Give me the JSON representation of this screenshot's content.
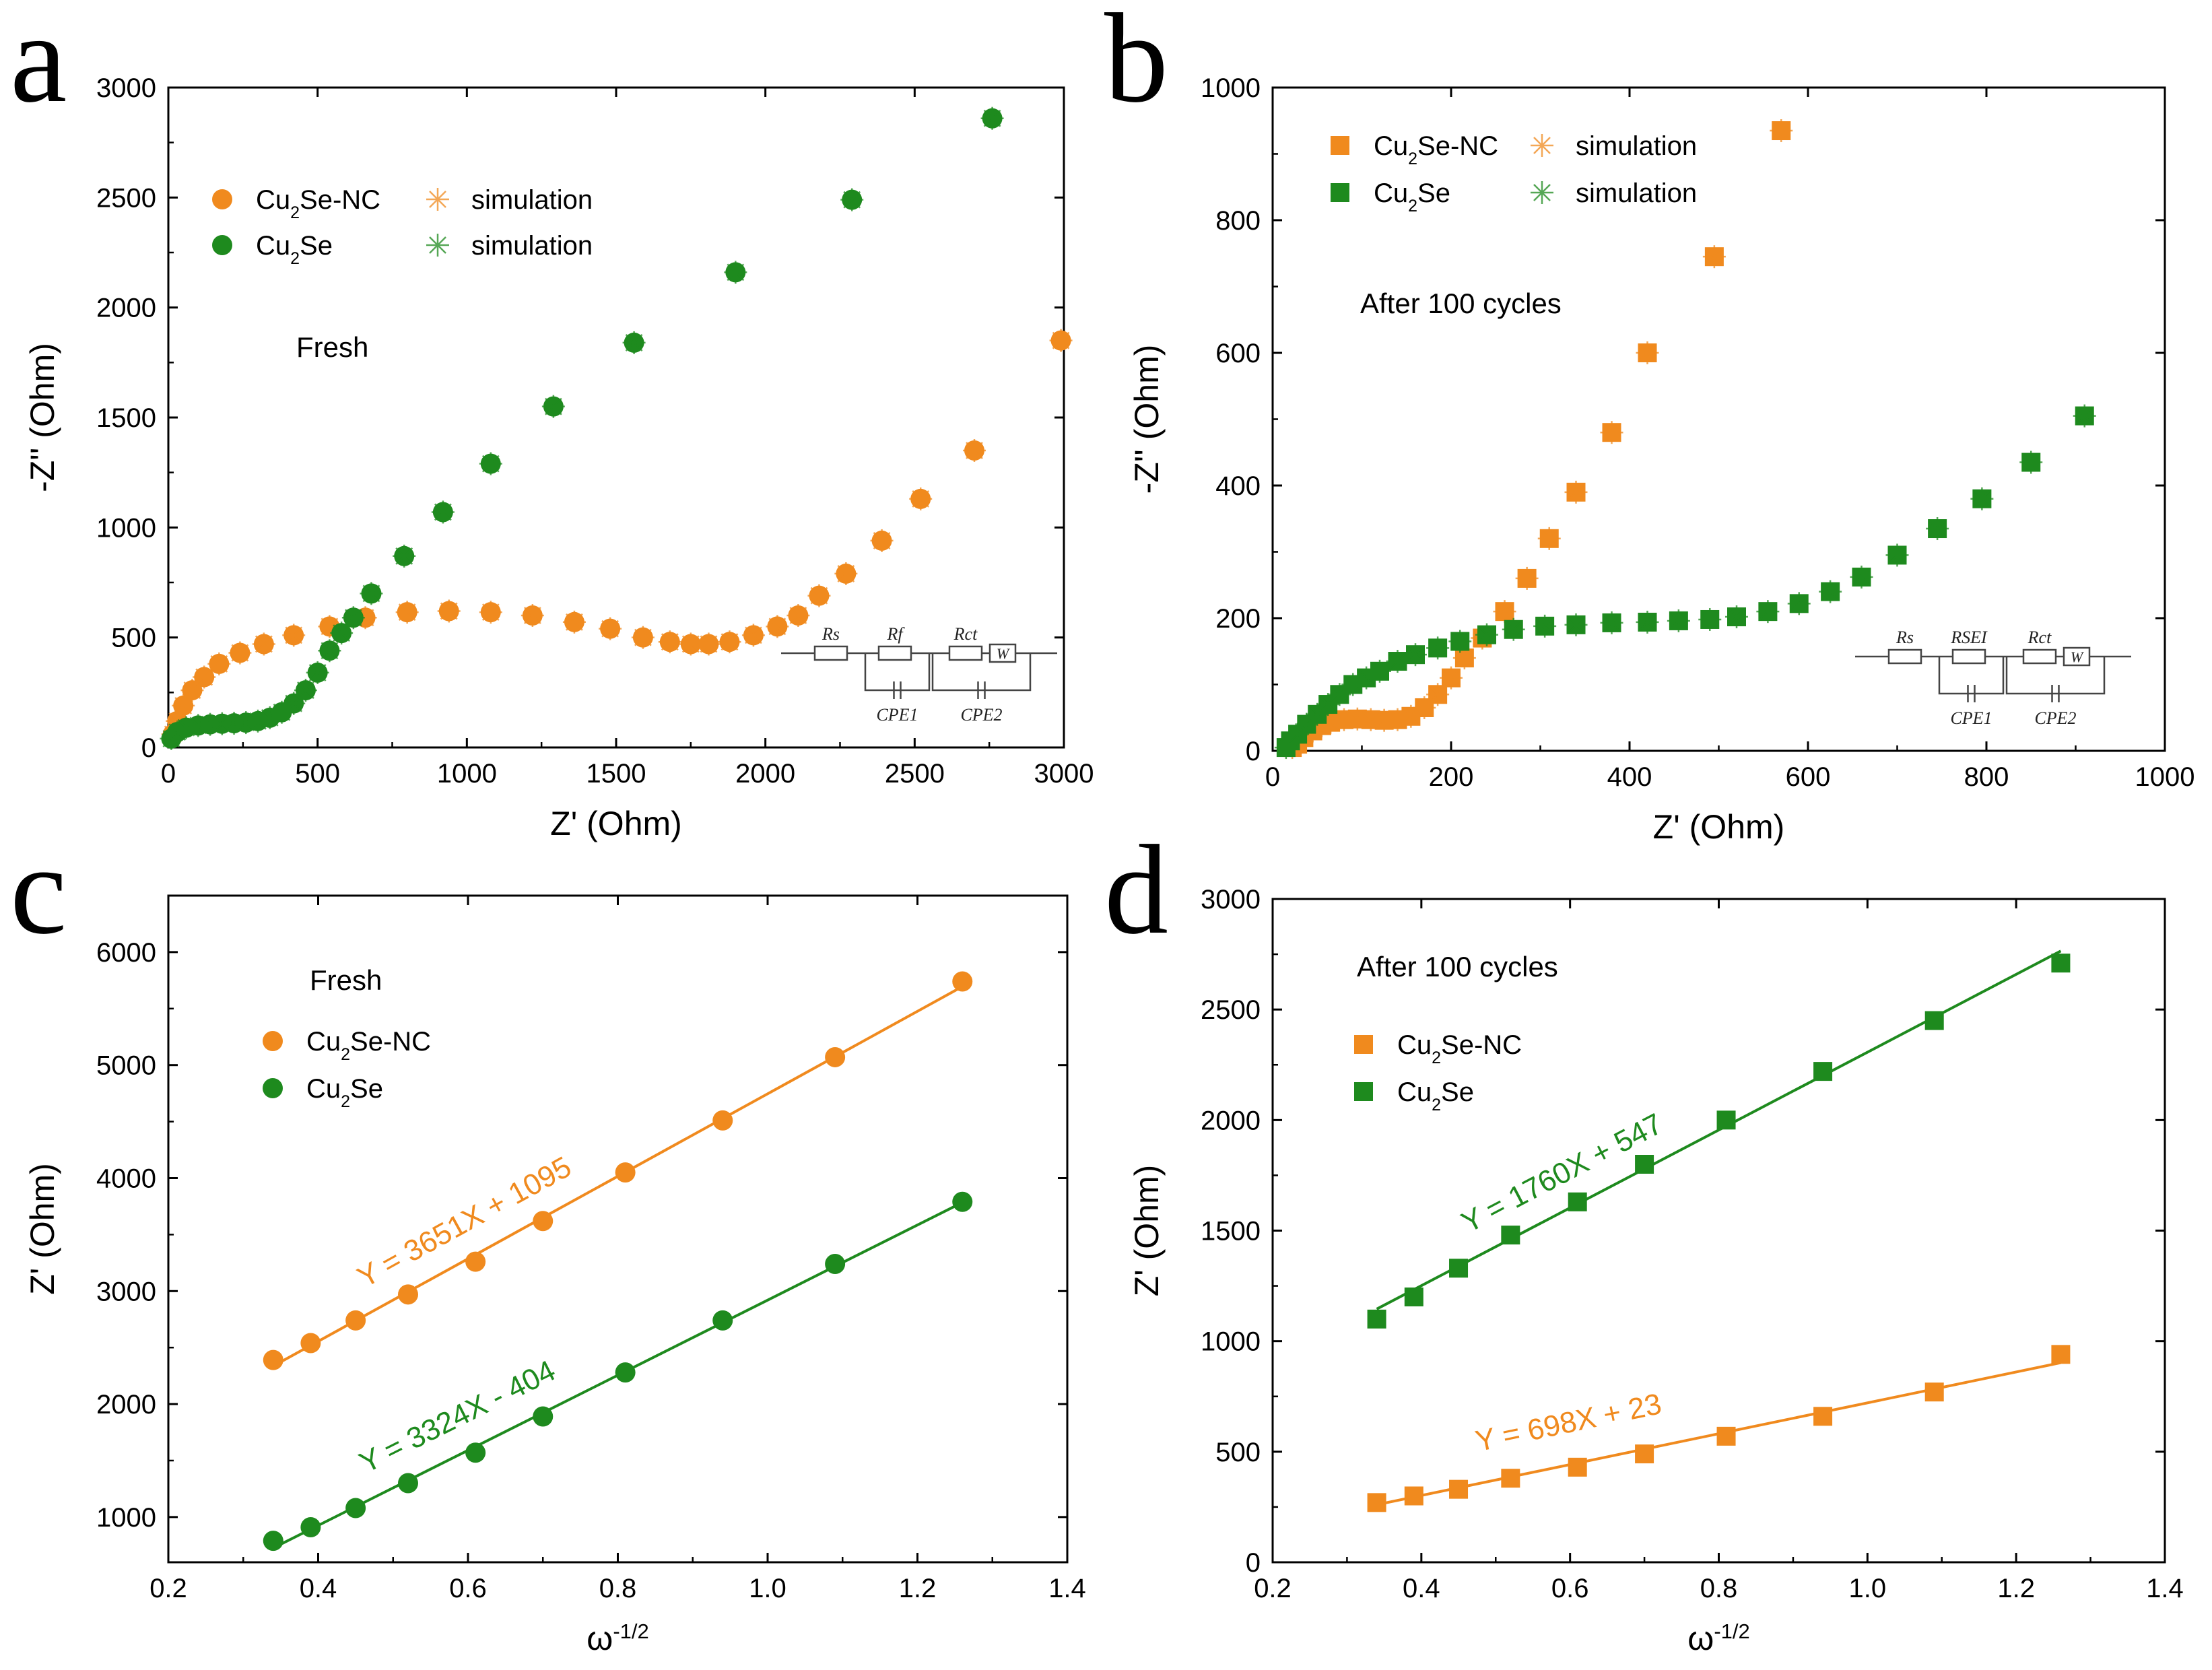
{
  "colors": {
    "orange": "#f08a1e",
    "green": "#1e8a1e",
    "axis": "#000000"
  },
  "chart_data": [
    {
      "panel": "a",
      "type": "scatter",
      "title": "",
      "annotation": "Fresh",
      "xlabel": "Z' (Ohm)",
      "ylabel": "-Z'' (Ohm)",
      "xlim": [
        0,
        3000
      ],
      "ylim": [
        0,
        3000
      ],
      "xticks": [
        0,
        500,
        1000,
        1500,
        2000,
        2500,
        3000
      ],
      "yticks": [
        0,
        500,
        1000,
        1500,
        2000,
        2500,
        3000
      ],
      "marker": "circle",
      "legend": {
        "position": "top-left",
        "series": [
          "Cu2Se-NC",
          "Cu2Se"
        ],
        "sim_label": "simulation"
      },
      "circuit": {
        "elements": [
          "Rs",
          "Rf",
          "Rct",
          "W"
        ],
        "cpes": [
          "CPE1",
          "CPE2"
        ]
      },
      "series": [
        {
          "name": "Cu2Se-NC",
          "color": "orange",
          "x": [
            15,
            30,
            50,
            80,
            120,
            170,
            240,
            320,
            420,
            540,
            660,
            800,
            940,
            1080,
            1220,
            1360,
            1480,
            1590,
            1680,
            1750,
            1810,
            1880,
            1960,
            2040,
            2110,
            2180,
            2270,
            2390,
            2520,
            2700,
            2990
          ],
          "y": [
            60,
            120,
            190,
            260,
            320,
            380,
            430,
            470,
            510,
            550,
            590,
            615,
            620,
            615,
            600,
            570,
            540,
            500,
            480,
            470,
            470,
            480,
            510,
            550,
            600,
            690,
            790,
            940,
            1130,
            1350,
            1850
          ]
        },
        {
          "name": "Cu2Se",
          "color": "green",
          "x": [
            10,
            30,
            60,
            100,
            140,
            180,
            220,
            260,
            300,
            340,
            380,
            420,
            460,
            500,
            540,
            580,
            620,
            680,
            790,
            920,
            1080,
            1290,
            1560,
            1900,
            2290,
            2760
          ],
          "y": [
            40,
            70,
            90,
            100,
            105,
            108,
            110,
            113,
            120,
            135,
            160,
            200,
            260,
            340,
            440,
            520,
            590,
            700,
            870,
            1070,
            1290,
            1550,
            1840,
            2160,
            2490,
            2860
          ]
        }
      ]
    },
    {
      "panel": "b",
      "type": "scatter",
      "title": "",
      "annotation": "After 100 cycles",
      "xlabel": "Z' (Ohm)",
      "ylabel": "-Z'' (Ohm)",
      "xlim": [
        0,
        1000
      ],
      "ylim": [
        0,
        1000
      ],
      "xticks": [
        0,
        200,
        400,
        600,
        800,
        1000
      ],
      "yticks": [
        0,
        200,
        400,
        600,
        800,
        1000
      ],
      "marker": "square",
      "legend": {
        "position": "top-left",
        "series": [
          "Cu2Se-NC",
          "Cu2Se"
        ],
        "sim_label": "simulation"
      },
      "circuit": {
        "elements": [
          "Rs",
          "RSEI",
          "Rct",
          "W"
        ],
        "cpes": [
          "CPE1",
          "CPE2"
        ]
      },
      "series": [
        {
          "name": "Cu2Se-NC",
          "color": "orange",
          "x": [
            22,
            28,
            35,
            45,
            55,
            65,
            80,
            95,
            110,
            125,
            140,
            155,
            170,
            185,
            200,
            215,
            235,
            260,
            285,
            310,
            340,
            380,
            420,
            495,
            570
          ],
          "y": [
            5,
            10,
            20,
            30,
            38,
            43,
            47,
            48,
            47,
            46,
            47,
            52,
            65,
            85,
            110,
            140,
            170,
            210,
            260,
            320,
            390,
            480,
            600,
            745,
            935
          ]
        },
        {
          "name": "Cu2Se",
          "color": "green",
          "x": [
            15,
            20,
            28,
            38,
            50,
            62,
            75,
            90,
            105,
            120,
            140,
            160,
            185,
            210,
            240,
            270,
            305,
            340,
            380,
            420,
            455,
            490,
            520,
            555,
            590,
            625,
            660,
            700,
            745,
            795,
            850,
            910
          ],
          "y": [
            5,
            15,
            25,
            40,
            55,
            70,
            85,
            100,
            110,
            120,
            135,
            145,
            155,
            165,
            175,
            183,
            188,
            190,
            193,
            194,
            196,
            198,
            202,
            210,
            222,
            240,
            262,
            295,
            335,
            380,
            435,
            505
          ]
        }
      ]
    },
    {
      "panel": "c",
      "type": "scatter",
      "title": "",
      "annotation": "Fresh",
      "xlabel": "ω^-1/2",
      "ylabel": "Z' (Ohm)",
      "xlim": [
        0.2,
        1.4
      ],
      "ylim": [
        600,
        6500
      ],
      "xticks": [
        0.2,
        0.4,
        0.6,
        0.8,
        1.0,
        1.2,
        1.4
      ],
      "yticks": [
        1000,
        2000,
        3000,
        4000,
        5000,
        6000
      ],
      "marker": "circle",
      "legend": {
        "position": "top-left",
        "series": [
          "Cu2Se-NC",
          "Cu2Se"
        ]
      },
      "series": [
        {
          "name": "Cu2Se-NC",
          "color": "orange",
          "x": [
            0.34,
            0.39,
            0.45,
            0.52,
            0.61,
            0.7,
            0.81,
            0.94,
            1.09,
            1.26
          ],
          "y": [
            2390,
            2540,
            2740,
            2970,
            3260,
            3620,
            4050,
            4510,
            5070,
            5740
          ],
          "fit": {
            "slope": 3651,
            "intercept": 1095,
            "label": "Y = 3651X + 1095"
          }
        },
        {
          "name": "Cu2Se",
          "color": "green",
          "x": [
            0.34,
            0.39,
            0.45,
            0.52,
            0.61,
            0.7,
            0.81,
            0.94,
            1.09,
            1.26
          ],
          "y": [
            790,
            910,
            1080,
            1300,
            1570,
            1890,
            2280,
            2740,
            3240,
            3790
          ],
          "fit": {
            "slope": 3324,
            "intercept": -404,
            "label": "Y = 3324X - 404"
          }
        }
      ]
    },
    {
      "panel": "d",
      "type": "scatter",
      "title": "",
      "annotation": "After 100 cycles",
      "xlabel": "ω^-1/2",
      "ylabel": "Z' (Ohm)",
      "xlim": [
        0.2,
        1.4
      ],
      "ylim": [
        0,
        3000
      ],
      "xticks": [
        0.2,
        0.4,
        0.6,
        0.8,
        1.0,
        1.2,
        1.4
      ],
      "yticks": [
        0,
        500,
        1000,
        1500,
        2000,
        2500,
        3000
      ],
      "marker": "square",
      "legend": {
        "position": "top-left",
        "series": [
          "Cu2Se-NC",
          "Cu2Se"
        ]
      },
      "series": [
        {
          "name": "Cu2Se-NC",
          "color": "orange",
          "x": [
            0.34,
            0.39,
            0.45,
            0.52,
            0.61,
            0.7,
            0.81,
            0.94,
            1.09,
            1.26
          ],
          "y": [
            270,
            300,
            330,
            380,
            430,
            490,
            570,
            660,
            770,
            940
          ],
          "fit": {
            "slope": 698,
            "intercept": 23,
            "label": "Y = 698X + 23"
          }
        },
        {
          "name": "Cu2Se",
          "color": "green",
          "x": [
            0.34,
            0.39,
            0.45,
            0.52,
            0.61,
            0.7,
            0.81,
            0.94,
            1.09,
            1.26
          ],
          "y": [
            1100,
            1200,
            1330,
            1480,
            1630,
            1800,
            2000,
            2220,
            2450,
            2710
          ],
          "fit": {
            "slope": 1760,
            "intercept": 547,
            "label": "Y = 1760X + 547"
          }
        }
      ]
    }
  ]
}
